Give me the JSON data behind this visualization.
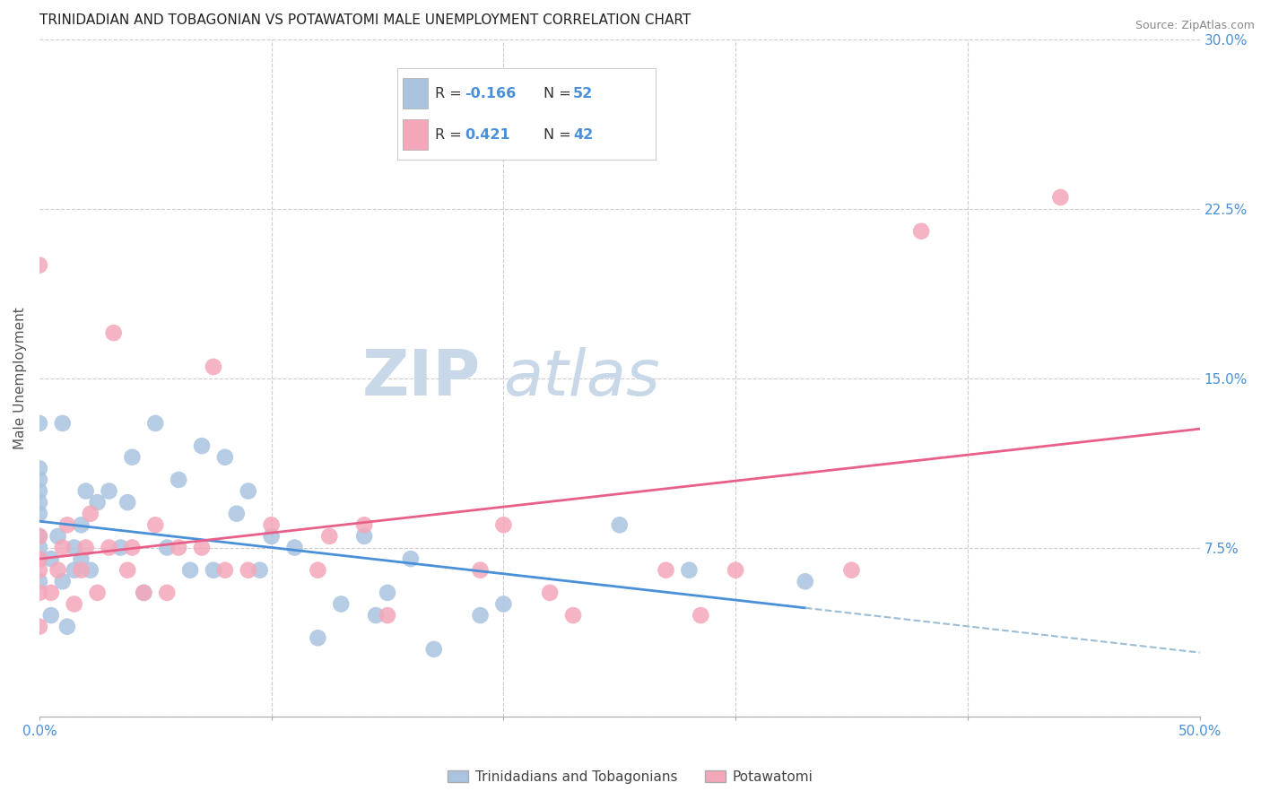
{
  "title": "TRINIDADIAN AND TOBAGONIAN VS POTAWATOMI MALE UNEMPLOYMENT CORRELATION CHART",
  "source": "Source: ZipAtlas.com",
  "ylabel": "Male Unemployment",
  "xlim": [
    0.0,
    0.5
  ],
  "ylim": [
    0.0,
    0.3
  ],
  "xticks": [
    0.0,
    0.1,
    0.2,
    0.3,
    0.4,
    0.5
  ],
  "xticklabels": [
    "0.0%",
    "",
    "",
    "",
    "",
    "50.0%"
  ],
  "yticks": [
    0.0,
    0.075,
    0.15,
    0.225,
    0.3
  ],
  "yticklabels": [
    "",
    "7.5%",
    "15.0%",
    "22.5%",
    "30.0%"
  ],
  "blue_color": "#aac4e0",
  "pink_color": "#f4a7b9",
  "blue_line_color": "#4a90d9",
  "pink_line_color": "#e8608a",
  "blue_dashed_color": "#9bbdd6",
  "background_color": "#ffffff",
  "grid_color": "#cccccc",
  "watermark_color": "#c8d8e8",
  "title_fontsize": 11,
  "axis_label_fontsize": 11,
  "tick_fontsize": 11,
  "blue_scatter": {
    "x": [
      0.0,
      0.0,
      0.0,
      0.0,
      0.0,
      0.0,
      0.0,
      0.0,
      0.0,
      0.0,
      0.005,
      0.005,
      0.008,
      0.01,
      0.01,
      0.012,
      0.015,
      0.015,
      0.018,
      0.018,
      0.02,
      0.022,
      0.025,
      0.03,
      0.035,
      0.038,
      0.04,
      0.045,
      0.05,
      0.055,
      0.06,
      0.065,
      0.07,
      0.075,
      0.08,
      0.085,
      0.09,
      0.095,
      0.1,
      0.11,
      0.12,
      0.13,
      0.14,
      0.145,
      0.15,
      0.16,
      0.17,
      0.19,
      0.2,
      0.25,
      0.28,
      0.33
    ],
    "y": [
      0.06,
      0.07,
      0.075,
      0.08,
      0.09,
      0.095,
      0.1,
      0.105,
      0.11,
      0.13,
      0.045,
      0.07,
      0.08,
      0.06,
      0.13,
      0.04,
      0.065,
      0.075,
      0.07,
      0.085,
      0.1,
      0.065,
      0.095,
      0.1,
      0.075,
      0.095,
      0.115,
      0.055,
      0.13,
      0.075,
      0.105,
      0.065,
      0.12,
      0.065,
      0.115,
      0.09,
      0.1,
      0.065,
      0.08,
      0.075,
      0.035,
      0.05,
      0.08,
      0.045,
      0.055,
      0.07,
      0.03,
      0.045,
      0.05,
      0.085,
      0.065,
      0.06
    ]
  },
  "pink_scatter": {
    "x": [
      0.0,
      0.0,
      0.0,
      0.0,
      0.0,
      0.0,
      0.005,
      0.008,
      0.01,
      0.012,
      0.015,
      0.018,
      0.02,
      0.022,
      0.025,
      0.03,
      0.032,
      0.038,
      0.04,
      0.045,
      0.05,
      0.055,
      0.06,
      0.07,
      0.075,
      0.08,
      0.09,
      0.1,
      0.12,
      0.125,
      0.14,
      0.15,
      0.19,
      0.2,
      0.22,
      0.23,
      0.27,
      0.285,
      0.3,
      0.35,
      0.38,
      0.44
    ],
    "y": [
      0.04,
      0.055,
      0.065,
      0.07,
      0.08,
      0.2,
      0.055,
      0.065,
      0.075,
      0.085,
      0.05,
      0.065,
      0.075,
      0.09,
      0.055,
      0.075,
      0.17,
      0.065,
      0.075,
      0.055,
      0.085,
      0.055,
      0.075,
      0.075,
      0.155,
      0.065,
      0.065,
      0.085,
      0.065,
      0.08,
      0.085,
      0.045,
      0.065,
      0.085,
      0.055,
      0.045,
      0.065,
      0.045,
      0.065,
      0.065,
      0.215,
      0.23
    ]
  }
}
